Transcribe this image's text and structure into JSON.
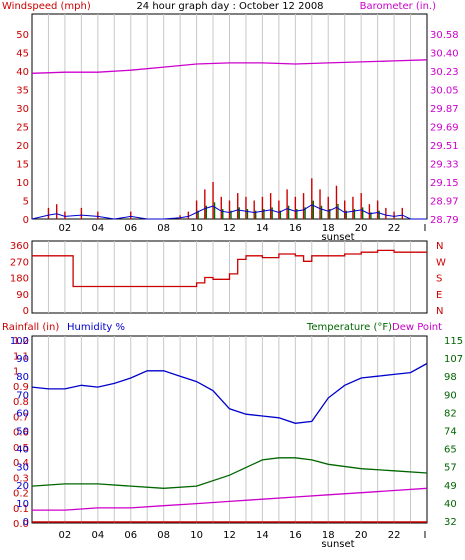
{
  "colors": {
    "wind": "#cc0000",
    "gust_fill": "#0000cc",
    "wind_avg": "#0000cc",
    "barometer": "#cc00cc",
    "direction": "#cc0000",
    "humidity": "#0000cc",
    "temperature": "#006600",
    "dewpoint": "#cc00cc",
    "rainfall": "#cc0000",
    "grid": "#c8c8c8"
  },
  "chart_data": [
    {
      "type": "line",
      "title": "24 hour graph day : October 12 2008",
      "ylabel_left": "Windspeed (mph)",
      "ylabel_right": "Barometer (in.)",
      "ylim_left": [
        0,
        50
      ],
      "ylim_right": [
        28.79,
        30.58
      ],
      "left_ticks": [
        "50",
        "45",
        "40",
        "35",
        "30",
        "25",
        "20",
        "15",
        "10",
        "5",
        "0"
      ],
      "right_ticks": [
        "30.58",
        "30.40",
        "30.23",
        "30.05",
        "29.87",
        "29.69",
        "29.51",
        "29.33",
        "29.15",
        "28.97",
        "28.79"
      ],
      "x_ticks": [
        "02",
        "04",
        "06",
        "08",
        "10",
        "12",
        "14",
        "16",
        "18",
        "20",
        "22"
      ],
      "x_marker": "sunset",
      "grid": true,
      "series": [
        {
          "name": "Windspeed (mph)",
          "x": [
            0,
            1,
            1.5,
            2,
            3,
            4,
            5,
            6,
            7,
            8,
            9,
            9.5,
            10,
            10.5,
            11,
            11.5,
            12,
            12.5,
            13,
            13.5,
            14,
            14.5,
            15,
            15.5,
            16,
            16.5,
            17,
            17.5,
            18,
            18.5,
            19,
            19.5,
            20,
            20.5,
            21,
            21.5,
            22,
            22.5,
            23,
            24
          ],
          "values": [
            0,
            3,
            4,
            2,
            3,
            2,
            0,
            2,
            0,
            0,
            1,
            2,
            5,
            8,
            10,
            6,
            5,
            7,
            6,
            5,
            6,
            7,
            5,
            8,
            6,
            7,
            11,
            8,
            6,
            9,
            5,
            6,
            7,
            4,
            5,
            3,
            2,
            3,
            0,
            0
          ]
        },
        {
          "name": "Barometer (in.)",
          "x": [
            0,
            2,
            4,
            6,
            8,
            10,
            12,
            14,
            16,
            18,
            20,
            22,
            24
          ],
          "values": [
            30.2,
            30.21,
            30.21,
            30.23,
            30.26,
            30.29,
            30.3,
            30.3,
            30.29,
            30.3,
            30.31,
            30.32,
            30.33
          ]
        }
      ]
    },
    {
      "type": "line",
      "ylabel_left": "",
      "ylim": [
        0,
        360
      ],
      "left_ticks": [
        "360",
        "270",
        "180",
        "90",
        "0"
      ],
      "right_ticks": [
        "N",
        "W",
        "S",
        "E",
        "N"
      ],
      "series": [
        {
          "name": "Wind direction",
          "x": [
            0,
            2,
            2.5,
            9.5,
            10,
            10.5,
            11,
            12,
            12.5,
            13,
            14,
            15,
            16,
            16.5,
            17,
            18,
            19,
            20,
            21,
            22,
            23,
            24
          ],
          "values": [
            300,
            300,
            130,
            130,
            150,
            180,
            170,
            200,
            280,
            300,
            290,
            310,
            300,
            270,
            300,
            300,
            310,
            320,
            330,
            320,
            320,
            320
          ]
        }
      ]
    },
    {
      "type": "line",
      "ylabel_left_rain": "Rainfall (in)",
      "ylabel_left_humidity": "Humidity %",
      "ylabel_right_temp": "Temperature (°F)",
      "ylabel_right_dew": "Dew Point",
      "rain_ticks": [
        "1.2",
        "1.1",
        "1",
        "0.9",
        "0.8",
        "0.7",
        "0.6",
        "0.5",
        "0.4",
        "0.3",
        "0.2",
        "0.1",
        "0.0"
      ],
      "humidity_ticks": [
        "100",
        "90",
        "80",
        "70",
        "60",
        "50",
        "40",
        "30",
        "20",
        "10",
        "0"
      ],
      "temp_ticks": [
        "115",
        "107",
        "98",
        "90",
        "82",
        "74",
        "65",
        "57",
        "49",
        "40",
        "32"
      ],
      "x_ticks": [
        "02",
        "04",
        "06",
        "08",
        "10",
        "12",
        "14",
        "16",
        "18",
        "20",
        "22"
      ],
      "x_marker": "sunset",
      "grid": true,
      "series": [
        {
          "name": "Humidity %",
          "x": [
            0,
            1,
            2,
            3,
            4,
            5,
            6,
            7,
            8,
            9,
            10,
            11,
            12,
            13,
            14,
            15,
            16,
            17,
            18,
            19,
            20,
            21,
            22,
            23,
            24
          ],
          "values": [
            74,
            73,
            73,
            75,
            74,
            76,
            79,
            83,
            83,
            80,
            77,
            72,
            62,
            59,
            58,
            57,
            54,
            55,
            68,
            75,
            79,
            80,
            81,
            82,
            87
          ]
        },
        {
          "name": "Temperature (°F)",
          "x": [
            0,
            2,
            4,
            6,
            8,
            10,
            12,
            14,
            15,
            16,
            17,
            18,
            20,
            22,
            24
          ],
          "values": [
            48,
            49,
            49,
            48,
            47,
            48,
            53,
            60,
            61,
            61,
            60,
            58,
            56,
            55,
            54
          ]
        },
        {
          "name": "Dew Point",
          "x": [
            0,
            2,
            4,
            6,
            8,
            10,
            12,
            14,
            16,
            18,
            20,
            22,
            24
          ],
          "values": [
            37,
            37,
            38,
            38,
            39,
            40,
            41,
            42,
            43,
            44,
            45,
            46,
            47
          ]
        },
        {
          "name": "Rainfall (in)",
          "x": [
            0,
            24
          ],
          "values": [
            0,
            0
          ]
        }
      ]
    }
  ]
}
